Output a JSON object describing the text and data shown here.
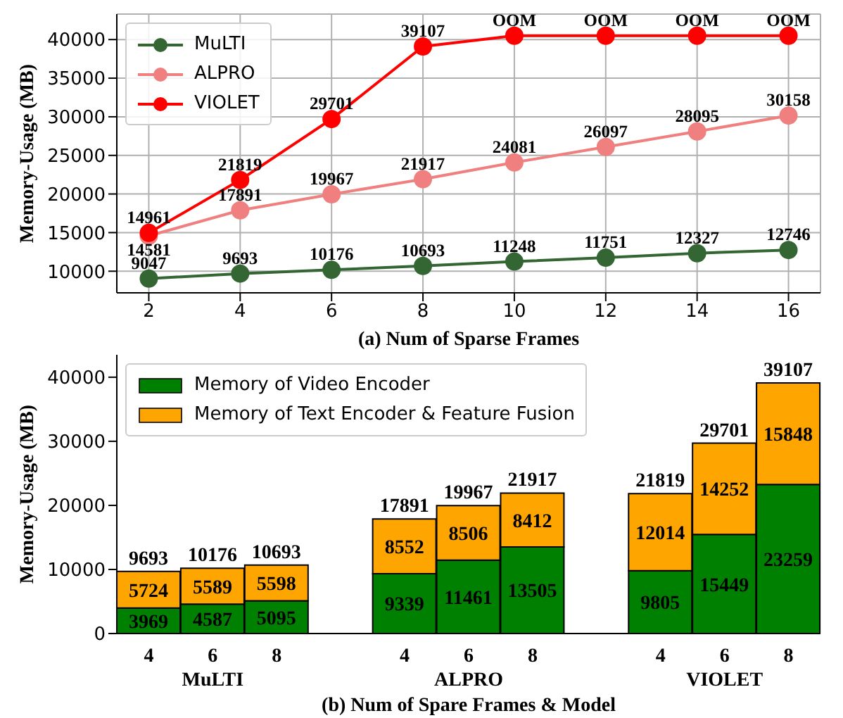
{
  "chart_data": [
    {
      "type": "line",
      "xlabel": "(a) Num of Sparse Frames",
      "ylabel": "Memory-Usage (MB)",
      "x": [
        2,
        4,
        6,
        8,
        10,
        12,
        14,
        16
      ],
      "xlim": [
        1.3,
        16.7
      ],
      "xticks": [
        2,
        4,
        6,
        8,
        10,
        12,
        14,
        16
      ],
      "ylim": [
        7200,
        43300
      ],
      "yticks": [
        10000,
        15000,
        20000,
        25000,
        30000,
        35000,
        40000
      ],
      "grid": true,
      "legend": "top left",
      "marker": "circle",
      "line_style": "solid",
      "series": [
        {
          "name": "MuLTI",
          "color": "#336633",
          "values": [
            9047,
            9693,
            10176,
            10693,
            11248,
            11751,
            12327,
            12746
          ],
          "value_labels": [
            "9047",
            "9693",
            "10176",
            "10693",
            "11248",
            "11751",
            "12327",
            "12746"
          ]
        },
        {
          "name": "ALPRO",
          "color": "#f08080",
          "values": [
            14581,
            17891,
            19967,
            21917,
            24081,
            26097,
            28095,
            30158
          ],
          "value_labels": [
            "14581",
            "17891",
            "19967",
            "21917",
            "24081",
            "26097",
            "28095",
            "30158"
          ]
        },
        {
          "name": "VIOLET",
          "color": "#ff0000",
          "values": [
            14961,
            21819,
            29701,
            39107,
            40500,
            40500,
            40500,
            40500
          ],
          "value_labels": [
            "14961",
            "21819",
            "29701",
            "39107",
            "OOM",
            "OOM",
            "OOM",
            "OOM"
          ]
        }
      ]
    },
    {
      "type": "bar",
      "stacked": true,
      "xlabel": "(b) Num of Spare Frames & Model",
      "ylabel": "Memory-Usage (MB)",
      "categories": [
        "4",
        "6",
        "8",
        null,
        "4",
        "6",
        "8",
        null,
        "4",
        "6",
        "8"
      ],
      "ylim": [
        0,
        43500
      ],
      "yticks": [
        0,
        10000,
        20000,
        30000,
        40000
      ],
      "grid": false,
      "legend": "top left",
      "data_labels": true,
      "totals": [
        "9693",
        "10176",
        "10693",
        null,
        "17891",
        "19967",
        "21917",
        null,
        "21819",
        "29701",
        "39107"
      ],
      "annotations": [
        "MuLTI",
        "ALPRO",
        "VIOLET"
      ],
      "series": [
        {
          "name": "Memory of Video Encoder",
          "color": "#008000",
          "values": [
            3969,
            4587,
            5095,
            null,
            9339,
            11461,
            13505,
            null,
            9805,
            15449,
            23259
          ]
        },
        {
          "name": "Memory of Text Encoder & Feature Fusion",
          "color": "#ffa500",
          "values": [
            5724,
            5589,
            5598,
            null,
            8552,
            8506,
            8412,
            null,
            12014,
            14252,
            15848
          ]
        }
      ]
    }
  ]
}
